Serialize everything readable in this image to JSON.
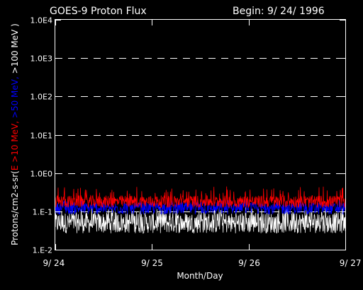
{
  "chart_data": {
    "type": "line",
    "title": "GOES-9 Proton Flux",
    "subtitle": "Begin: 9/ 24/ 1996",
    "xlabel": "Month/Day",
    "ylabel_parts": [
      {
        "text": "Protons/cm2-s-sr(",
        "color": "#ffffff"
      },
      {
        "text": "E >10 MeV, ",
        "color": "#ff0000"
      },
      {
        "text": ">50 MeV, ",
        "color": "#0000ff"
      },
      {
        "text": ">100 MeV )",
        "color": "#ffffff"
      }
    ],
    "x_ticks": [
      "9/ 24",
      "9/ 25",
      "9/ 26",
      "9/ 27"
    ],
    "x_range_days": [
      0,
      3
    ],
    "y_scale": "log",
    "y_range": [
      0.01,
      10000
    ],
    "y_ticks": [
      {
        "value": 0.01,
        "label": "1.E-2"
      },
      {
        "value": 0.1,
        "label": "1.E-1"
      },
      {
        "value": 1,
        "label": "1.0E0"
      },
      {
        "value": 10,
        "label": "1.0E1"
      },
      {
        "value": 100,
        "label": "1.0E2"
      },
      {
        "value": 1000,
        "label": "1.0E3"
      },
      {
        "value": 10000,
        "label": "1.0E4"
      }
    ],
    "grid": "dashed horizontal at decades",
    "series": [
      {
        "name": ">10 MeV",
        "color": "#ff0000",
        "typical": 0.18,
        "min": 0.12,
        "max": 0.45
      },
      {
        "name": ">50 MeV",
        "color": "#0000ff",
        "typical": 0.12,
        "min": 0.08,
        "max": 0.2
      },
      {
        "name": ">100 MeV",
        "color": "#ffffff",
        "typical": 0.05,
        "min": 0.025,
        "max": 0.13
      }
    ]
  }
}
